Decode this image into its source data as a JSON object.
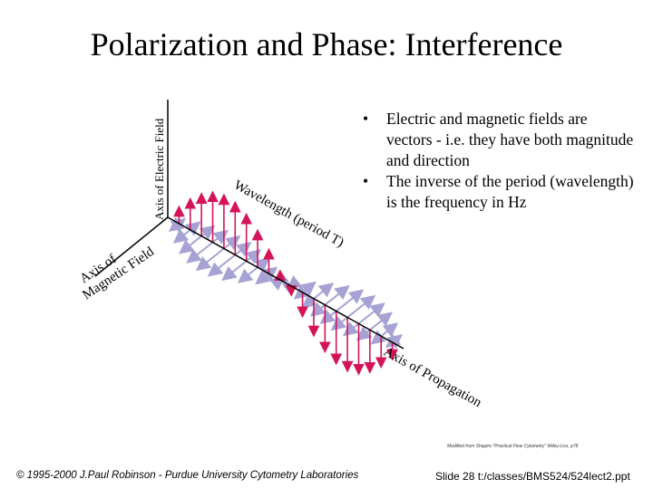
{
  "slide": {
    "title": "Polarization and Phase: Interference",
    "bullets": [
      "Electric and magnetic fields are vectors - i.e. they have both magnitude and direction",
      "The inverse of the period (wavelength) is the frequency in Hz"
    ],
    "bullet_symbol": "•"
  },
  "diagram": {
    "electric_axis_label": "Axis of Electric Field",
    "magnetic_axis_label_line1": "Axis of",
    "magnetic_axis_label_line2": "Magnetic Field",
    "wavelength_label": "Wavelength (period T)",
    "propagation_axis_label": "Axis of Propagation",
    "colors": {
      "electric": "#d4145a",
      "magnetic": "#a7a2d4",
      "axis": "#000000"
    }
  },
  "footer": {
    "credit": "Modified from Shapiro \"Practical Flow Cytometry\" Wiley-Liss, p78",
    "copyright": "© 1995-2000 J.Paul Robinson - Purdue University Cytometry Laboratories",
    "slide_ref": "Slide 28 t:/classes/BMS524/524lect2.ppt"
  }
}
